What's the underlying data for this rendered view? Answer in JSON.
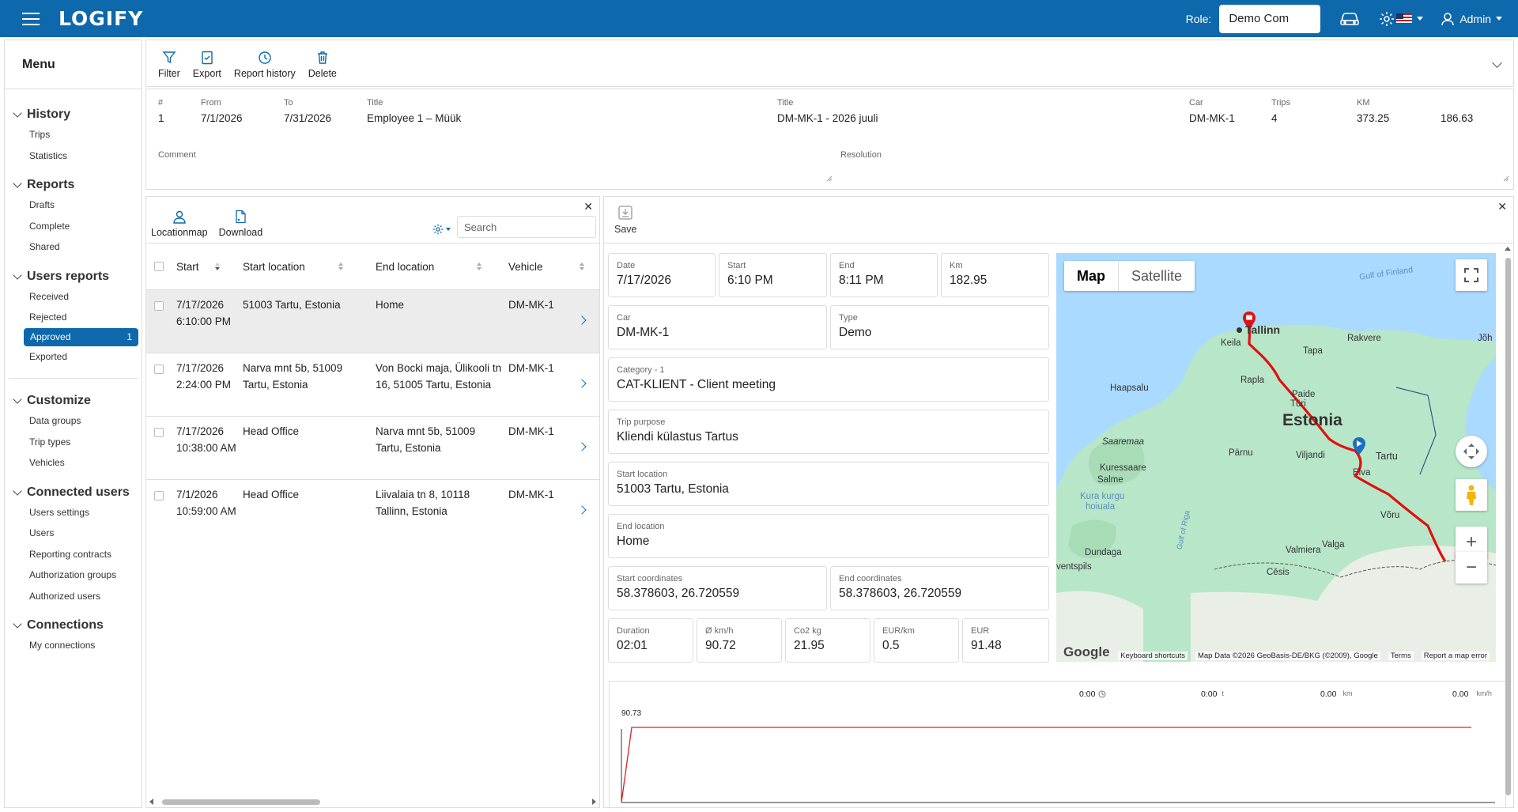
{
  "app": {
    "logo": "LOGIFY",
    "role_label": "Role:",
    "role_value": "Demo Com",
    "user": "Admin"
  },
  "menu": {
    "title": "Menu",
    "sections": [
      {
        "title": "History",
        "items": [
          "Trips",
          "Statistics"
        ]
      },
      {
        "title": "Reports",
        "items": [
          "Drafts",
          "Complete",
          "Shared"
        ]
      },
      {
        "title": "Users reports",
        "items": [
          "Received",
          "Rejected",
          "Approved",
          "Exported"
        ],
        "active": "Approved",
        "active_badge": "1"
      },
      {
        "title": "Customize",
        "items": [
          "Data groups",
          "Trip types",
          "Vehicles"
        ]
      },
      {
        "title": "Connected users",
        "items": [
          "Users settings",
          "Users",
          "Reporting contracts",
          "Authorization groups",
          "Authorized users"
        ]
      },
      {
        "title": "Connections",
        "items": [
          "My connections"
        ]
      }
    ]
  },
  "toolbar": {
    "filter": "Filter",
    "export": "Export",
    "report_history": "Report history",
    "delete": "Delete"
  },
  "report": {
    "num_label": "#",
    "num": "1",
    "from_label": "From",
    "from": "7/1/2026",
    "to_label": "To",
    "to": "7/31/2026",
    "title_label": "Title",
    "title": "Employee 1 – Müük",
    "title2_label": "Title",
    "title2": "DM-MK-1 - 2026 juuli",
    "car_label": "Car",
    "car": "DM-MK-1",
    "trips_label": "Trips",
    "trips": "4",
    "km_label": "KM",
    "km": "373.25",
    "km2": "186.63",
    "comment_label": "Comment",
    "resolution_label": "Resolution"
  },
  "list": {
    "tools": {
      "locationmap": "Locationmap",
      "download": "Download"
    },
    "search_placeholder": "Search",
    "columns": {
      "start": "Start",
      "start_location": "Start location",
      "end_location": "End location",
      "vehicle": "Vehicle"
    },
    "rows": [
      {
        "start": "7/17/2026 6:10:00 PM",
        "start_location": "51003 Tartu, Estonia",
        "end_location": "Home",
        "vehicle": "DM-MK-1"
      },
      {
        "start": "7/17/2026 2:24:00 PM",
        "start_location": "Narva mnt 5b, 51009 Tartu, Estonia",
        "end_location": "Von Bocki maja, Ülikooli tn 16, 51005 Tartu, Estonia",
        "vehicle": "DM-MK-1"
      },
      {
        "start": "7/17/2026 10:38:00 AM",
        "start_location": "Head Office",
        "end_location": "Narva mnt 5b, 51009 Tartu, Estonia",
        "vehicle": "DM-MK-1"
      },
      {
        "start": "7/1/2026 10:59:00 AM",
        "start_location": "Head Office",
        "end_location": "Liivalaia tn 8, 10118 Tallinn, Estonia",
        "vehicle": "DM-MK-1"
      }
    ]
  },
  "detail": {
    "save": "Save",
    "date": {
      "label": "Date",
      "value": "7/17/2026"
    },
    "start": {
      "label": "Start",
      "value": "6:10 PM"
    },
    "end": {
      "label": "End",
      "value": "8:11 PM"
    },
    "km": {
      "label": "Km",
      "value": "182.95"
    },
    "car": {
      "label": "Car",
      "value": "DM-MK-1"
    },
    "type": {
      "label": "Type",
      "value": "Demo"
    },
    "category": {
      "label": "Category - 1",
      "value": "CAT-KLIENT - Client meeting"
    },
    "purpose": {
      "label": "Trip purpose",
      "value": "Kliendi külastus Tartus"
    },
    "start_location": {
      "label": "Start location",
      "value": "51003 Tartu, Estonia"
    },
    "end_location": {
      "label": "End location",
      "value": "Home"
    },
    "start_coords": {
      "label": "Start coordinates",
      "value": "58.378603, 26.720559"
    },
    "end_coords": {
      "label": "End coordinates",
      "value": "58.378603, 26.720559"
    },
    "duration": {
      "label": "Duration",
      "value": "02:01"
    },
    "speed": {
      "label": "Ø km/h",
      "value": "90.72"
    },
    "co2": {
      "label": "Co2 kg",
      "value": "21.95"
    },
    "eur_km": {
      "label": "EUR/km",
      "value": "0.5"
    },
    "eur": {
      "label": "EUR",
      "value": "91.48"
    }
  },
  "map": {
    "tab_map": "Map",
    "tab_satellite": "Satellite",
    "labels": {
      "gulf": "Gulf of Finland",
      "tallinn": "Tallinn",
      "keila": "Keila",
      "tapa": "Tapa",
      "rakvere": "Rakvere",
      "johvi": "Jõh",
      "rapla": "Rapla",
      "paide": "Paide",
      "turi": "Türi",
      "haapsalu": "Haapsalu",
      "estonia": "Estonia",
      "saaremaa": "Saaremaa",
      "parnu": "Pärnu",
      "viljandi": "Viljandi",
      "tartu": "Tartu",
      "kuressaare": "Kuressaare",
      "salme": "Salme",
      "elva": "Elva",
      "kura": "Kura kurgu",
      "kura2": "hoiuala",
      "riga": "Gulf of Riga",
      "valga": "Valga",
      "voru": "Võru",
      "dundaga": "Dundaga",
      "valmiera": "Valmiera",
      "ventspils": "ventspils",
      "cesis": "Cēsis"
    },
    "google": "Google",
    "footer": [
      "Keyboard shortcuts",
      "Map Data ©2026 GeoBasis-DE/BKG (©2009), Google",
      "Terms",
      "Report a map error"
    ]
  },
  "speed_chart": {
    "stats": [
      {
        "value": "0:00",
        "unit": "clock"
      },
      {
        "value": "0:00",
        "unit": "t"
      },
      {
        "value": "0.00",
        "unit": "km"
      },
      {
        "value": "0.00",
        "unit": "km/h"
      }
    ],
    "peak_label": "90.73",
    "line_color": "#e02020"
  }
}
